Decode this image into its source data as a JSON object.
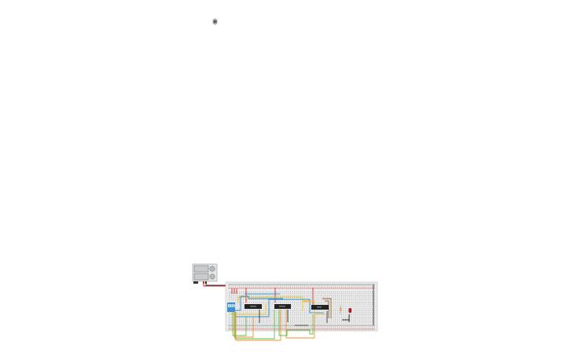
{
  "canvas": {
    "background": "#ffffff",
    "toolbar_icon": "component-chip-icon"
  },
  "circuit": {
    "components": [
      {
        "type": "power-supply",
        "icon": "power-supply-icon"
      },
      {
        "type": "breadboard",
        "icon": "breadboard-icon"
      },
      {
        "type": "dip-switch",
        "icon": "dip-switch-icon",
        "color": "#3a8fd8"
      },
      {
        "type": "ic-chip",
        "icon": "ic-chip-icon"
      },
      {
        "type": "ic-chip",
        "icon": "ic-chip-icon"
      },
      {
        "type": "ic-chip",
        "icon": "ic-chip-icon"
      },
      {
        "type": "resistor",
        "icon": "resistor-icon"
      },
      {
        "type": "led",
        "icon": "led-icon",
        "color": "#b3161b"
      }
    ],
    "wire_colors": {
      "red": "#e0262a",
      "blue": "#2f8fd8",
      "yellow": "#f0c419",
      "green": "#5cbf4a",
      "orange": "#f0922a",
      "brown": "#9a6a3a",
      "black": "#333333"
    }
  }
}
